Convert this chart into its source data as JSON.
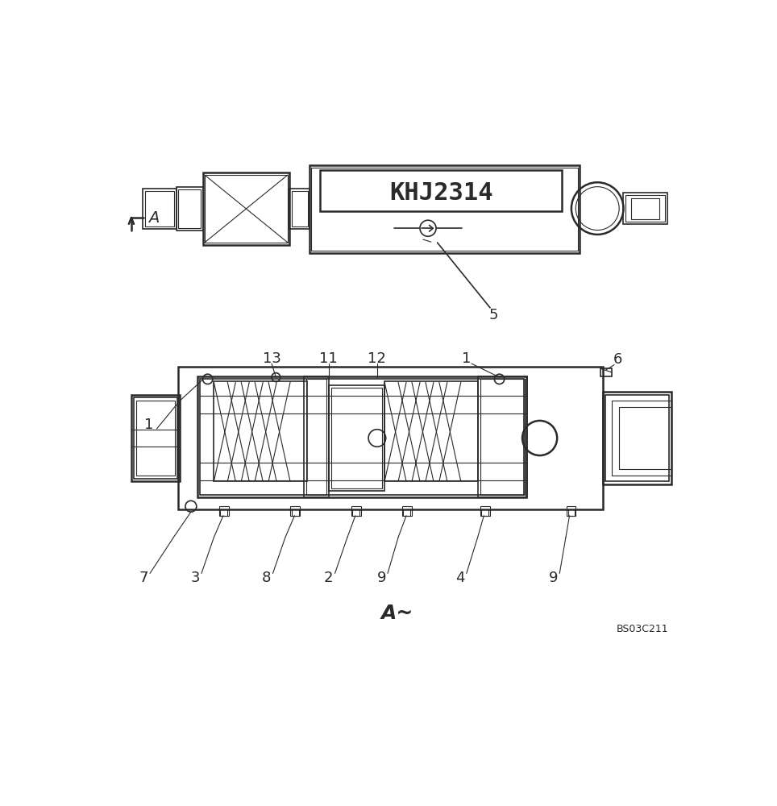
{
  "bg_color": "#ffffff",
  "line_color": "#2a2a2a",
  "fig_width": 9.64,
  "fig_height": 10.0,
  "dpi": 100,
  "xlim": [
    0,
    964
  ],
  "ylim": [
    0,
    1000
  ],
  "top_label_text": "KHJ2314",
  "part5_label": "5",
  "section_label": "A~",
  "footer": "BS03C211",
  "view_label": "A"
}
